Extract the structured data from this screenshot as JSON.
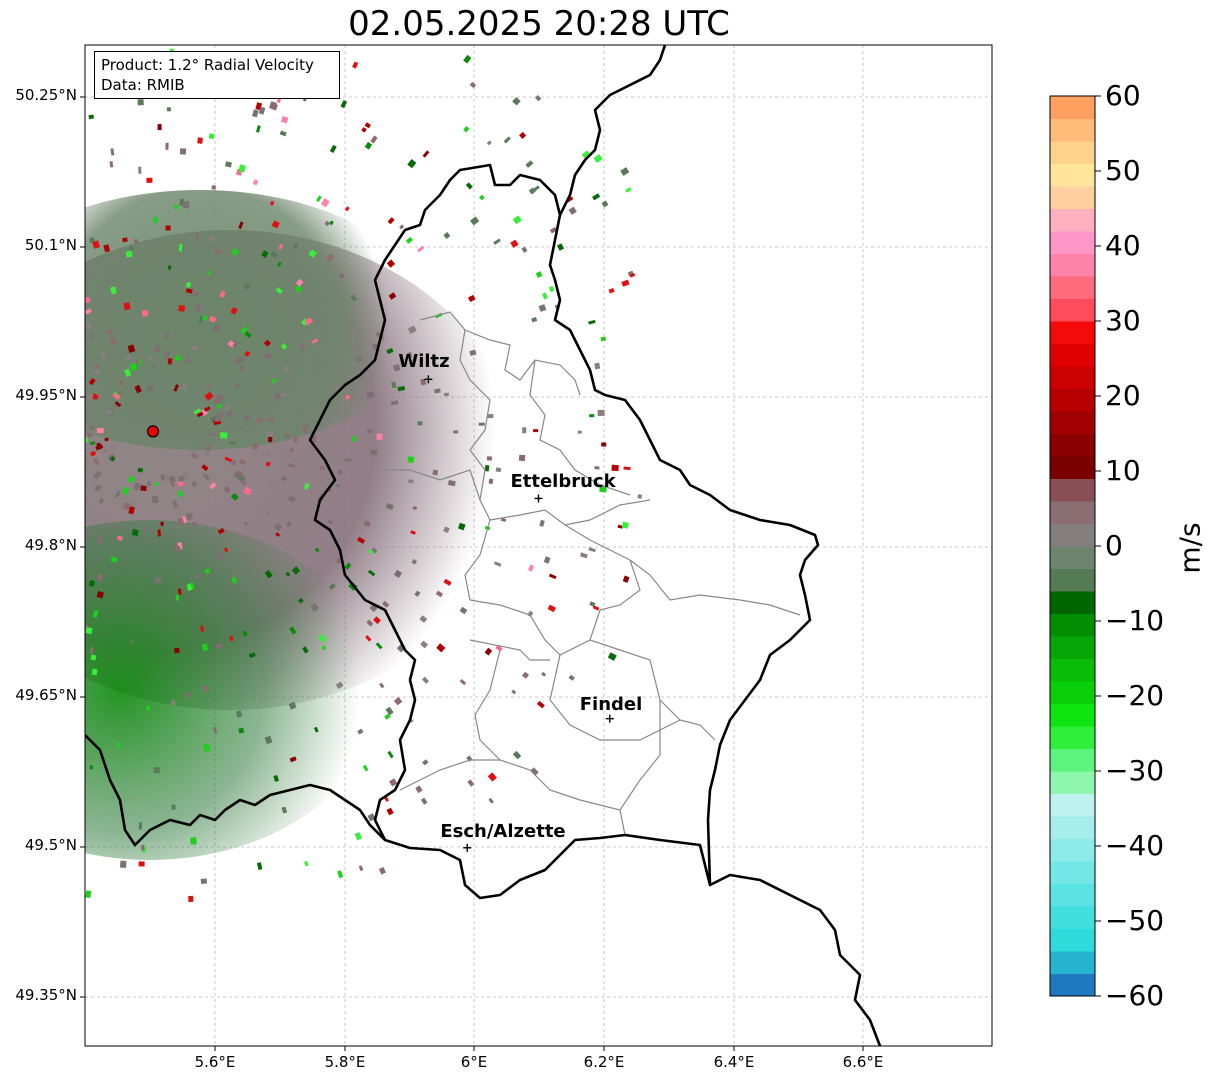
{
  "title": "02.05.2025 20:28 UTC",
  "info_box": {
    "product": "Product: 1.2° Radial Velocity",
    "data": "Data: RMIB"
  },
  "map": {
    "lat_ticks": [
      "50.25°N",
      "50.1°N",
      "49.95°N",
      "49.8°N",
      "49.65°N",
      "49.5°N",
      "49.35°N"
    ],
    "lon_ticks": [
      "5.6°E",
      "5.8°E",
      "6°E",
      "6.2°E",
      "6.4°E",
      "6.6°E"
    ],
    "cities": [
      {
        "name": "Wiltz",
        "lon": 5.93,
        "lat": 49.966
      },
      {
        "name": "Ettelbruck",
        "lon": 6.1,
        "lat": 49.847
      },
      {
        "name": "Findel",
        "lon": 6.21,
        "lat": 49.627
      },
      {
        "name": "Esch/Alzette",
        "lon": 5.99,
        "lat": 49.498
      }
    ],
    "radar_site": {
      "lon": 5.505,
      "lat": 49.914
    },
    "extent": {
      "lon_min": 5.4,
      "lon_max": 6.8,
      "lat_min": 49.3,
      "lat_max": 50.3
    }
  },
  "colorbar": {
    "label": "m/s",
    "min": -60,
    "max": 60,
    "tick_labels": [
      "60",
      "50",
      "40",
      "30",
      "20",
      "10",
      "0",
      "−10",
      "−20",
      "−30",
      "−40",
      "−50",
      "−60"
    ],
    "stops": [
      {
        "from": -60,
        "to": -57,
        "color": "#1f78c0"
      },
      {
        "from": -57,
        "to": -54,
        "color": "#25b4cf"
      },
      {
        "from": -54,
        "to": -51,
        "color": "#2edbdb"
      },
      {
        "from": -51,
        "to": -48,
        "color": "#41dfde"
      },
      {
        "from": -48,
        "to": -45,
        "color": "#5ae3e2"
      },
      {
        "from": -45,
        "to": -42,
        "color": "#73e7e6"
      },
      {
        "from": -42,
        "to": -39,
        "color": "#8debea"
      },
      {
        "from": -39,
        "to": -36,
        "color": "#a6eeee"
      },
      {
        "from": -36,
        "to": -33,
        "color": "#bef2f1"
      },
      {
        "from": -33,
        "to": -30,
        "color": "#8ef6ae"
      },
      {
        "from": -30,
        "to": -27,
        "color": "#5cf47c"
      },
      {
        "from": -27,
        "to": -24,
        "color": "#30ef3b"
      },
      {
        "from": -24,
        "to": -21,
        "color": "#0fe60f"
      },
      {
        "from": -21,
        "to": -18,
        "color": "#0ad00a"
      },
      {
        "from": -18,
        "to": -15,
        "color": "#08bc08"
      },
      {
        "from": -15,
        "to": -12,
        "color": "#06a606"
      },
      {
        "from": -12,
        "to": -9,
        "color": "#038e03"
      },
      {
        "from": -9,
        "to": -6,
        "color": "#006700"
      },
      {
        "from": -6,
        "to": -3,
        "color": "#557b55"
      },
      {
        "from": -3,
        "to": 0,
        "color": "#6c856c"
      },
      {
        "from": 0,
        "to": 3,
        "color": "#857e7e"
      },
      {
        "from": 3,
        "to": 6,
        "color": "#8a6e72"
      },
      {
        "from": 6,
        "to": 9,
        "color": "#894f55"
      },
      {
        "from": 9,
        "to": 12,
        "color": "#7a0000"
      },
      {
        "from": 12,
        "to": 15,
        "color": "#8a0000"
      },
      {
        "from": 15,
        "to": 18,
        "color": "#a00000"
      },
      {
        "from": 18,
        "to": 21,
        "color": "#b60000"
      },
      {
        "from": 21,
        "to": 24,
        "color": "#cc0000"
      },
      {
        "from": 24,
        "to": 27,
        "color": "#e00000"
      },
      {
        "from": 27,
        "to": 30,
        "color": "#f50a0a"
      },
      {
        "from": 30,
        "to": 33,
        "color": "#ff4b5a"
      },
      {
        "from": 33,
        "to": 36,
        "color": "#ff6a7c"
      },
      {
        "from": 36,
        "to": 39,
        "color": "#ff82a8"
      },
      {
        "from": 39,
        "to": 42,
        "color": "#ff96c8"
      },
      {
        "from": 42,
        "to": 45,
        "color": "#ffb0c0"
      },
      {
        "from": 45,
        "to": 48,
        "color": "#ffcfa0"
      },
      {
        "from": 48,
        "to": 51,
        "color": "#ffe59a"
      },
      {
        "from": 51,
        "to": 54,
        "color": "#ffd28c"
      },
      {
        "from": 54,
        "to": 57,
        "color": "#ffbb78"
      },
      {
        "from": 57,
        "to": 60,
        "color": "#ffa060"
      }
    ]
  }
}
